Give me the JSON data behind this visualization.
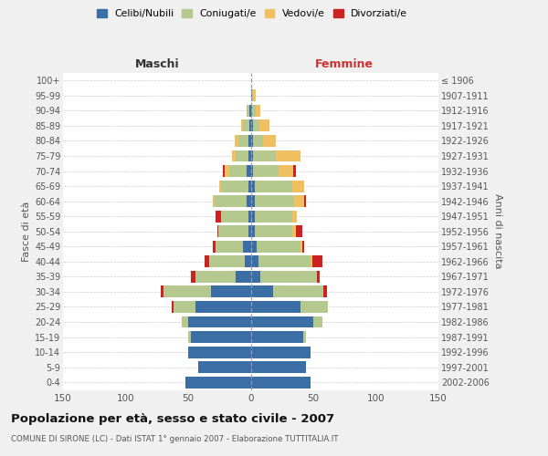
{
  "age_groups_bottom_to_top": [
    "0-4",
    "5-9",
    "10-14",
    "15-19",
    "20-24",
    "25-29",
    "30-34",
    "35-39",
    "40-44",
    "45-49",
    "50-54",
    "55-59",
    "60-64",
    "65-69",
    "70-74",
    "75-79",
    "80-84",
    "85-89",
    "90-94",
    "95-99",
    "100+"
  ],
  "birth_years_bottom_to_top": [
    "2002-2006",
    "1997-2001",
    "1992-1996",
    "1987-1991",
    "1982-1986",
    "1977-1981",
    "1972-1976",
    "1967-1971",
    "1962-1966",
    "1957-1961",
    "1952-1956",
    "1947-1951",
    "1942-1946",
    "1937-1941",
    "1932-1936",
    "1927-1931",
    "1922-1926",
    "1917-1921",
    "1912-1916",
    "1907-1911",
    "≤ 1906"
  ],
  "male": {
    "celibi": [
      52,
      42,
      50,
      48,
      50,
      44,
      32,
      12,
      5,
      6,
      2,
      2,
      3,
      2,
      3,
      2,
      2,
      1,
      1,
      0,
      0
    ],
    "coniugati": [
      0,
      0,
      0,
      2,
      5,
      18,
      38,
      32,
      28,
      22,
      24,
      22,
      26,
      22,
      14,
      10,
      8,
      5,
      2,
      0,
      0
    ],
    "vedovi": [
      0,
      0,
      0,
      0,
      0,
      0,
      0,
      0,
      0,
      0,
      0,
      0,
      1,
      1,
      4,
      3,
      3,
      2,
      0,
      0,
      0
    ],
    "divorziati": [
      0,
      0,
      0,
      0,
      0,
      1,
      2,
      4,
      4,
      2,
      1,
      4,
      0,
      0,
      1,
      0,
      0,
      0,
      0,
      0,
      0
    ]
  },
  "female": {
    "nubili": [
      48,
      44,
      48,
      42,
      50,
      40,
      18,
      8,
      6,
      5,
      3,
      3,
      3,
      3,
      2,
      2,
      2,
      2,
      1,
      1,
      0
    ],
    "coniugate": [
      0,
      0,
      0,
      2,
      7,
      22,
      40,
      45,
      42,
      35,
      30,
      30,
      32,
      30,
      20,
      18,
      8,
      5,
      3,
      1,
      0
    ],
    "vedove": [
      0,
      0,
      0,
      0,
      0,
      0,
      0,
      0,
      1,
      1,
      3,
      4,
      8,
      10,
      12,
      20,
      10,
      8,
      4,
      2,
      0
    ],
    "divorziate": [
      0,
      0,
      0,
      0,
      0,
      0,
      3,
      2,
      8,
      2,
      5,
      0,
      1,
      0,
      2,
      0,
      0,
      0,
      0,
      0,
      0
    ]
  },
  "colors": {
    "celibi": "#3b6ea5",
    "coniugati": "#b5c98e",
    "vedovi": "#f0c060",
    "divorziati": "#cc2222"
  },
  "title": "Popolazione per età, sesso e stato civile - 2007",
  "subtitle": "COMUNE DI SIRONE (LC) - Dati ISTAT 1° gennaio 2007 - Elaborazione TUTTITALIA.IT",
  "xlabel_left": "Maschi",
  "xlabel_right": "Femmine",
  "ylabel_left": "Fasce di età",
  "ylabel_right": "Anni di nascita",
  "legend_labels": [
    "Celibi/Nubili",
    "Coniugati/e",
    "Vedovi/e",
    "Divorziati/e"
  ],
  "xlim": 150,
  "bg_color": "#f0f0f0",
  "plot_bg": "#ffffff"
}
